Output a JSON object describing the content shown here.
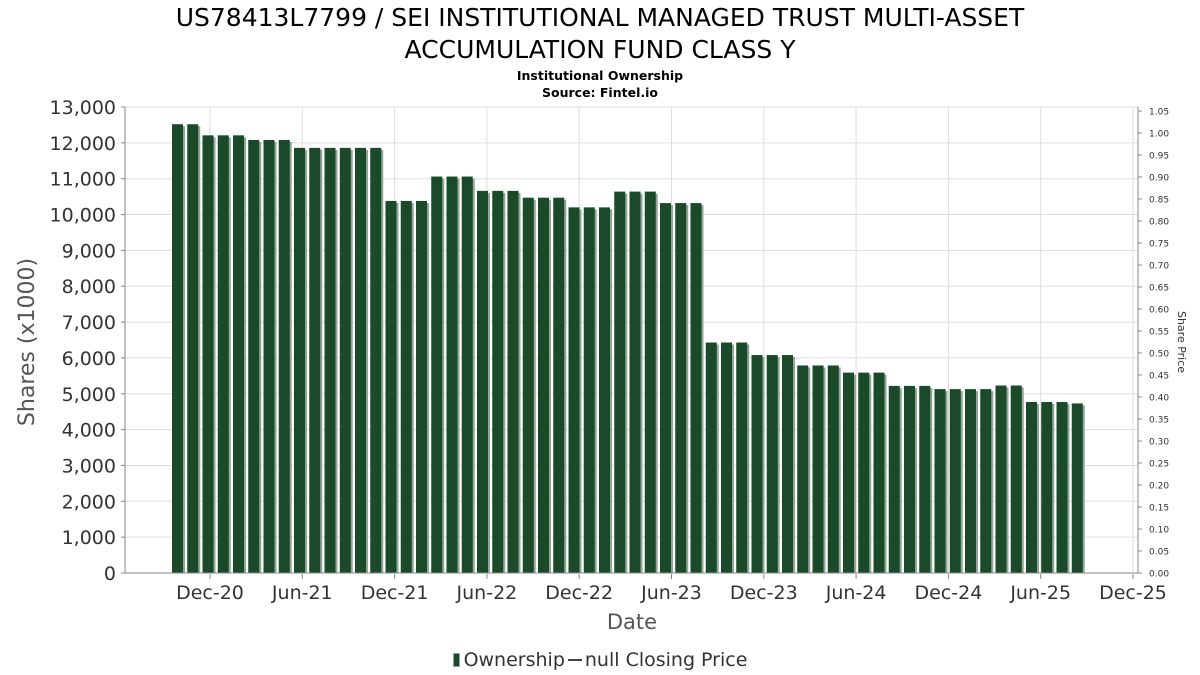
{
  "header": {
    "title_line1": "US78413L7799 / SEI INSTITUTIONAL MANAGED TRUST MULTI-ASSET",
    "title_line2": "ACCUMULATION FUND CLASS Y",
    "subtitle": "Institutional Ownership",
    "source": "Source: Fintel.io"
  },
  "legend": {
    "ownership_label": "Ownership",
    "price_label": "null Closing Price"
  },
  "colors": {
    "bar": "#1a4a2a",
    "bar_shadow": "#8fa896",
    "grid": "#dddddd"
  },
  "chart_data": {
    "type": "bar",
    "xlabel": "Date",
    "ylabel": "Shares (x1000)",
    "y2label": "Share Price",
    "ylim": [
      0,
      13000
    ],
    "y2lim": [
      0,
      1.05
    ],
    "yticks": [
      "0",
      "1,000",
      "2,000",
      "3,000",
      "4,000",
      "5,000",
      "6,000",
      "7,000",
      "8,000",
      "9,000",
      "10,000",
      "11,000",
      "12,000",
      "13,000"
    ],
    "y2ticks": [
      "0.00",
      "0.05",
      "0.10",
      "0.15",
      "0.20",
      "0.25",
      "0.30",
      "0.35",
      "0.40",
      "0.45",
      "0.50",
      "0.55",
      "0.60",
      "0.65",
      "0.70",
      "0.75",
      "0.80",
      "0.85",
      "0.90",
      "0.95",
      "1.00",
      "1.05"
    ],
    "xticks": [
      "Dec-20",
      "Jun-21",
      "Dec-21",
      "Jun-22",
      "Dec-22",
      "Jun-23",
      "Dec-23",
      "Jun-24",
      "Dec-24",
      "Jun-25",
      "Dec-25"
    ],
    "grid": true,
    "legend_position": "bottom",
    "series": [
      {
        "name": "Ownership",
        "values": [
          12520,
          12520,
          12210,
          12210,
          12210,
          12080,
          12080,
          12080,
          11860,
          11860,
          11860,
          11860,
          11860,
          11860,
          10380,
          10380,
          10380,
          11060,
          11060,
          11060,
          10660,
          10660,
          10660,
          10470,
          10470,
          10470,
          10200,
          10200,
          10200,
          10640,
          10640,
          10640,
          10320,
          10320,
          10320,
          6430,
          6430,
          6430,
          6080,
          6080,
          6080,
          5790,
          5790,
          5790,
          5590,
          5590,
          5590,
          5220,
          5220,
          5220,
          5130,
          5130,
          5130,
          5130,
          5230,
          5230,
          4770,
          4770,
          4770,
          4730
        ]
      }
    ]
  }
}
